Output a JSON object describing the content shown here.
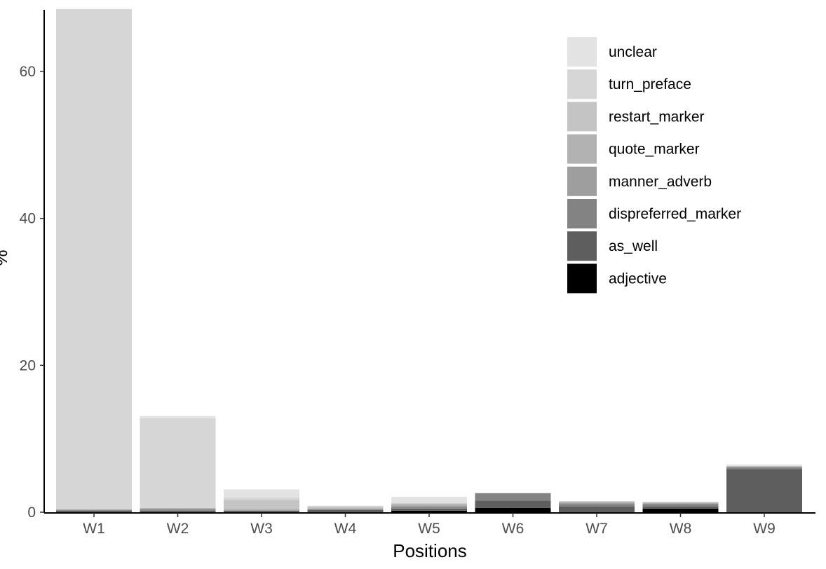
{
  "chart_data": {
    "type": "bar",
    "stacked": true,
    "xlabel": "Positions",
    "ylabel": "%",
    "ylim": [
      0,
      68.5
    ],
    "yticks": [
      0,
      20,
      40,
      60
    ],
    "categories": [
      "W1",
      "W2",
      "W3",
      "W4",
      "W5",
      "W6",
      "W7",
      "W8",
      "W9"
    ],
    "grid": false,
    "legend_position": "top-right",
    "series": [
      {
        "name": "adjective",
        "color": "#000000",
        "values": [
          0,
          0,
          0,
          0,
          0.2,
          0.6,
          0,
          0.5,
          0
        ]
      },
      {
        "name": "as_well",
        "color": "#5e5e5e",
        "values": [
          0.2,
          0.2,
          0.2,
          0.3,
          0.3,
          1.0,
          0.8,
          0.3,
          5.9
        ]
      },
      {
        "name": "dispreferred_marker",
        "color": "#838383",
        "values": [
          0.1,
          0.2,
          0,
          0.1,
          0.2,
          1.0,
          0.3,
          0.3,
          0.2
        ]
      },
      {
        "name": "manner_adverb",
        "color": "#9e9e9e",
        "values": [
          0.1,
          0.1,
          0.1,
          0.1,
          0.2,
          0,
          0.2,
          0.1,
          0.1
        ]
      },
      {
        "name": "quote_marker",
        "color": "#b2b2b2",
        "values": [
          0,
          0.1,
          0.2,
          0.1,
          0.2,
          0,
          0.1,
          0.1,
          0
        ]
      },
      {
        "name": "restart_marker",
        "color": "#c4c4c4",
        "values": [
          0,
          0,
          1.2,
          0.2,
          0.1,
          0,
          0.1,
          0.1,
          0.1
        ]
      },
      {
        "name": "turn_preface",
        "color": "#d6d6d6",
        "values": [
          68.1,
          12.2,
          0.3,
          0,
          0.1,
          0,
          0,
          0,
          0
        ]
      },
      {
        "name": "unclear",
        "color": "#e3e3e3",
        "values": [
          0,
          0.3,
          1.1,
          0.1,
          0.8,
          0,
          0,
          0,
          0.2
        ]
      }
    ]
  }
}
